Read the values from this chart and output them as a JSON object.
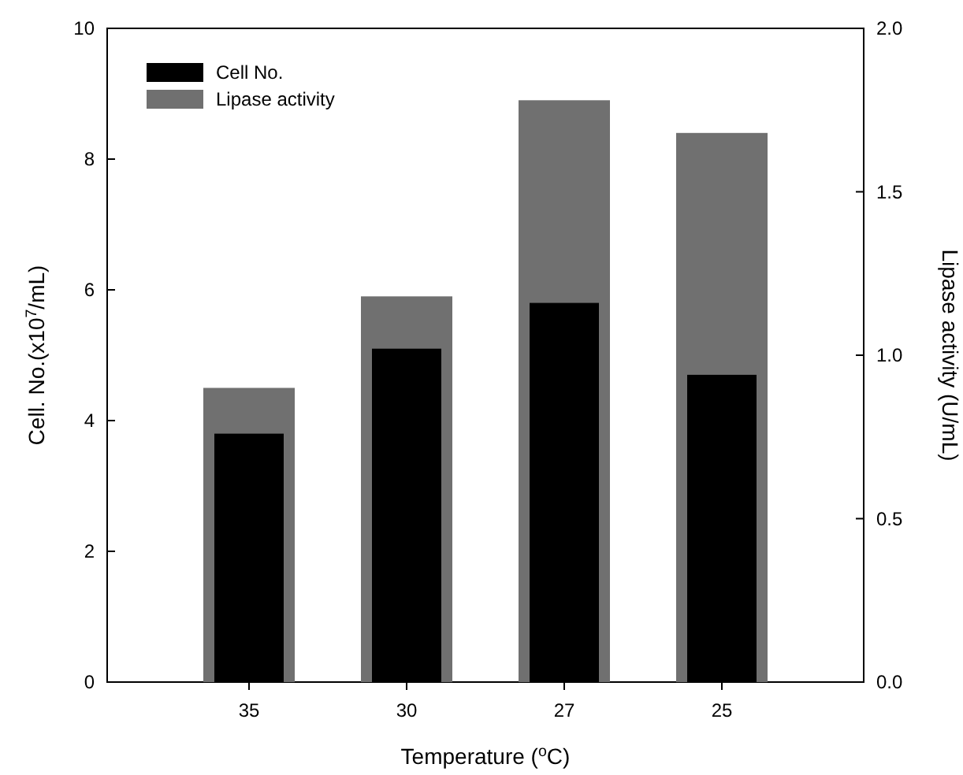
{
  "chart_data": {
    "type": "bar",
    "xlabel": "Temperature ($^{o}$C)",
    "ylabel": "Cell. No.(x10$^{7}$/mL)",
    "y2label": "Lipase activity (U/mL)",
    "categories": [
      "35",
      "30",
      "27",
      "25"
    ],
    "series": [
      {
        "name": "Lipase activity",
        "color": "#707070",
        "axis": "y2",
        "values": [
          0.9,
          1.18,
          1.78,
          1.68
        ]
      },
      {
        "name": "Cell No.",
        "color": "#000000",
        "values": [
          3.8,
          5.1,
          5.8,
          4.7
        ]
      }
    ],
    "ylim": [
      0,
      10
    ],
    "yticks": [
      0,
      2,
      4,
      6,
      8,
      10
    ],
    "y2lim": [
      0,
      2
    ],
    "y2ticks": [
      {
        "value": 0,
        "label": "0.0"
      },
      {
        "value": 0.5,
        "label": "0.5"
      },
      {
        "value": 1,
        "label": "1.0"
      },
      {
        "value": 1.5,
        "label": "1.5"
      },
      {
        "value": 2,
        "label": "2.0"
      }
    ],
    "legend": "top left"
  }
}
